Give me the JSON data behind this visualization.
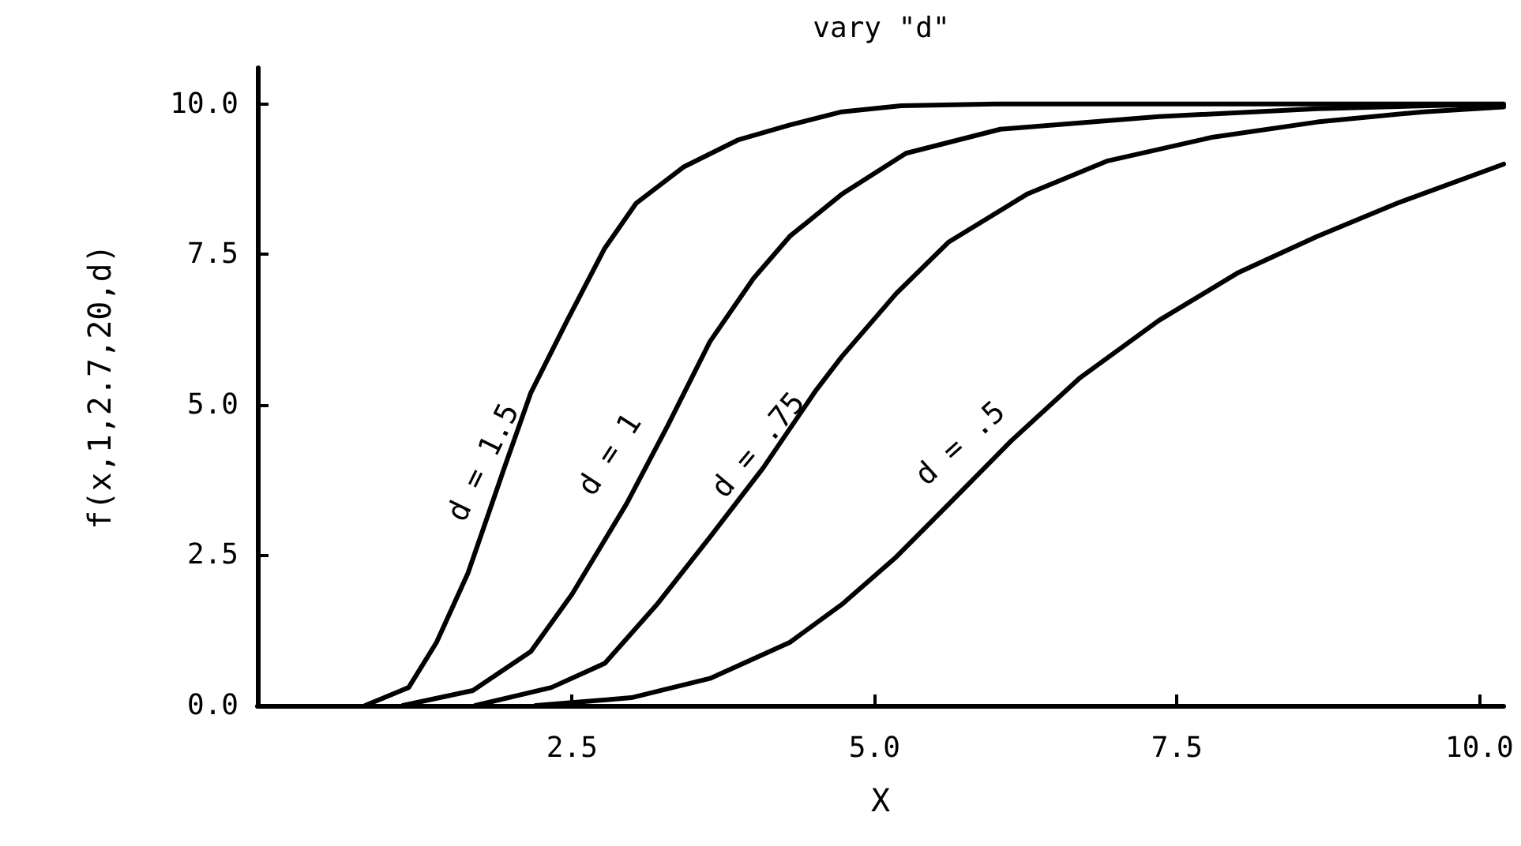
{
  "chart_data": {
    "type": "line",
    "title": "vary \"d\"",
    "xlabel": "X",
    "ylabel": "f(x,1,2.7,20,d)",
    "xlim": [
      -0.1,
      10.2
    ],
    "ylim": [
      0,
      10.6
    ],
    "xticks": [
      2.5,
      {
        "value": 5,
        "label": "5.0"
      },
      7.5,
      {
        "value": 10,
        "label": "10.0"
      }
    ],
    "yticks": [
      {
        "value": 0,
        "label": "0.0"
      },
      2.5,
      {
        "value": 5,
        "label": "5.0"
      },
      7.5,
      {
        "value": 10,
        "label": "10.0"
      }
    ],
    "grid": false,
    "marker": "none",
    "line_style": "solid",
    "series": [
      {
        "name": "d = 1.5",
        "color": "#000000",
        "x": [
          0.79,
          1.15,
          1.38,
          1.64,
          1.94,
          2.16,
          2.46,
          2.77,
          3.03,
          3.42,
          3.87,
          4.3,
          4.73,
          5.22,
          6,
          7,
          8,
          9,
          10.2
        ],
        "values": [
          0,
          0.3,
          1.05,
          2.2,
          3.95,
          5.2,
          6.4,
          7.6,
          8.35,
          8.95,
          9.4,
          9.65,
          9.87,
          9.97,
          10,
          10,
          10,
          10,
          10
        ]
      },
      {
        "name": "d = 1",
        "color": "#000000",
        "x": [
          1.1,
          1.68,
          2.16,
          2.5,
          2.95,
          3.29,
          3.64,
          4.0,
          4.3,
          4.73,
          5.26,
          6.04,
          7.35,
          8.66,
          9.76,
          10.2
        ],
        "values": [
          0,
          0.25,
          0.9,
          1.85,
          3.35,
          4.65,
          6.05,
          7.1,
          7.8,
          8.5,
          9.18,
          9.58,
          9.79,
          9.92,
          9.98,
          9.98
        ]
      },
      {
        "name": "d = .75",
        "color": "#000000",
        "x": [
          1.7,
          2.33,
          2.77,
          3.21,
          3.64,
          4.08,
          4.52,
          4.73,
          5.18,
          5.61,
          6.26,
          6.92,
          7.8,
          8.66,
          9.54,
          10.2
        ],
        "values": [
          0,
          0.3,
          0.7,
          1.7,
          2.8,
          3.95,
          5.25,
          5.8,
          6.85,
          7.7,
          8.5,
          9.05,
          9.45,
          9.7,
          9.87,
          9.95
        ]
      },
      {
        "name": "d = .5",
        "color": "#000000",
        "x": [
          2.2,
          2.99,
          3.64,
          4.3,
          4.73,
          5.18,
          5.61,
          6.13,
          6.7,
          7.35,
          8.01,
          8.66,
          9.32,
          10.2
        ],
        "values": [
          0,
          0.13,
          0.45,
          1.05,
          1.68,
          2.47,
          3.34,
          4.4,
          5.45,
          6.4,
          7.2,
          7.8,
          8.35,
          9.0
        ]
      }
    ]
  }
}
